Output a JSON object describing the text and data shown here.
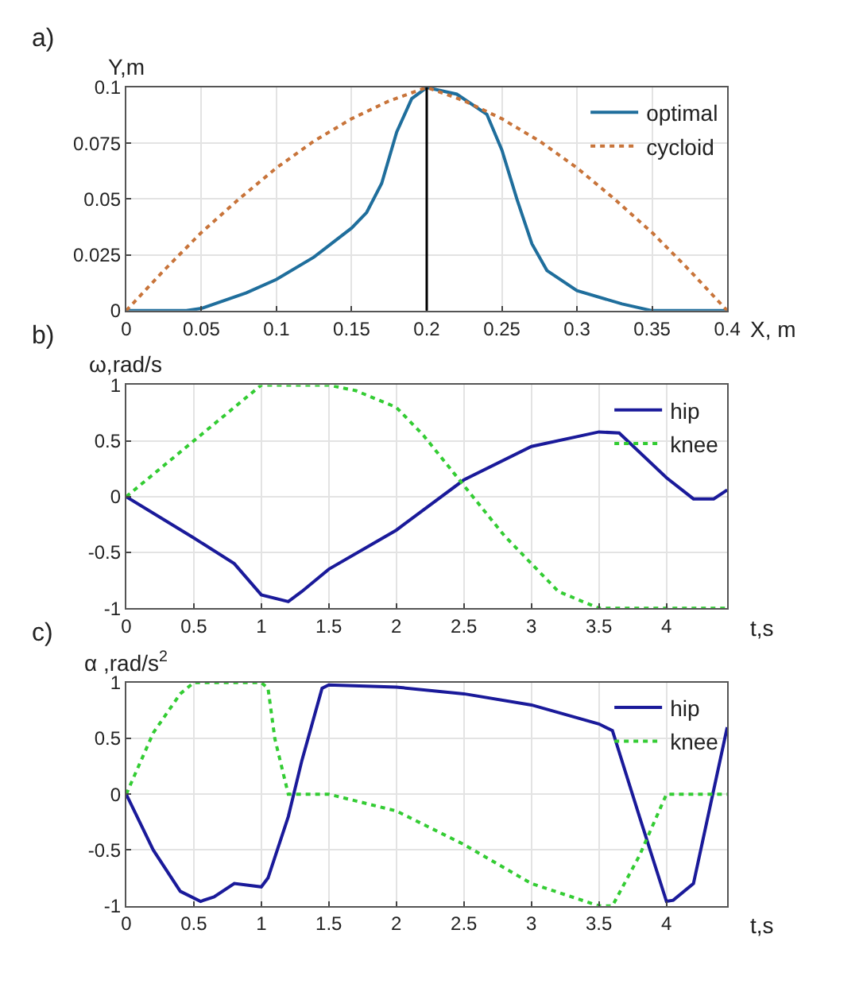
{
  "chart_data": [
    {
      "type": "line",
      "title": "a)",
      "xlabel": "X, m",
      "ylabel": "Y,m",
      "xlim": [
        0,
        0.4
      ],
      "ylim": [
        0,
        0.1
      ],
      "xticks": [
        0,
        0.05,
        0.1,
        0.15,
        0.2,
        0.25,
        0.3,
        0.35,
        0.4
      ],
      "yticks": [
        0,
        0.025,
        0.05,
        0.075,
        0.1
      ],
      "grid": true,
      "legend": "top right",
      "ref_lines": [
        {
          "axis": "x",
          "value": 0.2,
          "color": "#000000",
          "line_style": "solid"
        }
      ],
      "series": [
        {
          "name": "optimal",
          "color": "#1f6e9c",
          "line_style": "solid",
          "x": [
            0,
            0.04,
            0.05,
            0.08,
            0.1,
            0.125,
            0.15,
            0.16,
            0.17,
            0.18,
            0.19,
            0.2,
            0.22,
            0.24,
            0.25,
            0.26,
            0.27,
            0.28,
            0.3,
            0.33,
            0.35,
            0.4
          ],
          "values": [
            0,
            0,
            0.001,
            0.008,
            0.014,
            0.024,
            0.037,
            0.044,
            0.057,
            0.08,
            0.095,
            0.1,
            0.097,
            0.088,
            0.072,
            0.05,
            0.03,
            0.018,
            0.009,
            0.003,
            0,
            0
          ]
        },
        {
          "name": "cycloid",
          "color": "#c8743a",
          "line_style": "dotted",
          "x": [
            0,
            0.025,
            0.05,
            0.075,
            0.1,
            0.125,
            0.15,
            0.175,
            0.2,
            0.225,
            0.25,
            0.275,
            0.3,
            0.325,
            0.35,
            0.375,
            0.4
          ],
          "values": [
            0,
            0.018,
            0.035,
            0.05,
            0.064,
            0.076,
            0.086,
            0.094,
            0.1,
            0.094,
            0.086,
            0.076,
            0.064,
            0.05,
            0.035,
            0.018,
            0
          ]
        }
      ]
    },
    {
      "type": "line",
      "title": "b)",
      "xlabel": "t,s",
      "ylabel": "ω,rad/s",
      "xlim": [
        0,
        4.45
      ],
      "ylim": [
        -1,
        1
      ],
      "xticks": [
        0,
        0.5,
        1,
        1.5,
        2,
        2.5,
        3,
        3.5,
        4
      ],
      "yticks": [
        -1,
        -0.5,
        0,
        0.5,
        1
      ],
      "grid": true,
      "legend": "top right",
      "series": [
        {
          "name": "hip",
          "color": "#1a1a9a",
          "line_style": "solid",
          "x": [
            0,
            0.5,
            0.8,
            1,
            1.2,
            1.3,
            1.5,
            2,
            2.5,
            3,
            3.5,
            3.65,
            4,
            4.2,
            4.35,
            4.45
          ],
          "values": [
            0,
            -0.37,
            -0.6,
            -0.88,
            -0.94,
            -0.85,
            -0.65,
            -0.3,
            0.15,
            0.45,
            0.58,
            0.57,
            0.17,
            -0.02,
            -0.02,
            0.06
          ]
        },
        {
          "name": "knee",
          "color": "#33cc33",
          "line_style": "dotted",
          "x": [
            0,
            0.5,
            0.8,
            1,
            1.5,
            1.7,
            2,
            2.2,
            2.5,
            2.8,
            3,
            3.2,
            3.5,
            4.45
          ],
          "values": [
            0,
            0.5,
            0.8,
            1,
            1,
            0.95,
            0.8,
            0.55,
            0.1,
            -0.35,
            -0.6,
            -0.85,
            -1,
            -1
          ]
        }
      ]
    },
    {
      "type": "line",
      "title": "c)",
      "xlabel": "t,s",
      "ylabel": "α ,rad/s$^{2}$",
      "xlim": [
        0,
        4.45
      ],
      "ylim": [
        -1,
        1
      ],
      "xticks": [
        0,
        0.5,
        1,
        1.5,
        2,
        2.5,
        3,
        3.5,
        4
      ],
      "yticks": [
        -1,
        -0.5,
        0,
        0.5,
        1
      ],
      "grid": true,
      "legend": "top right",
      "series": [
        {
          "name": "hip",
          "color": "#1a1a9a",
          "line_style": "solid",
          "x": [
            0,
            0.2,
            0.4,
            0.55,
            0.65,
            0.8,
            1,
            1.05,
            1.2,
            1.3,
            1.45,
            1.5,
            2,
            2.5,
            3,
            3.5,
            3.6,
            3.8,
            4,
            4.05,
            4.2,
            4.45
          ],
          "values": [
            0,
            -0.5,
            -0.87,
            -0.96,
            -0.92,
            -0.8,
            -0.83,
            -0.75,
            -0.2,
            0.3,
            0.95,
            0.98,
            0.96,
            0.9,
            0.8,
            0.63,
            0.57,
            -0.2,
            -0.96,
            -0.95,
            -0.8,
            0.6
          ]
        },
        {
          "name": "knee",
          "color": "#33cc33",
          "line_style": "dotted",
          "x": [
            0,
            0.2,
            0.4,
            0.5,
            1,
            1.05,
            1.1,
            1.2,
            1.5,
            2,
            2.5,
            3,
            3.5,
            3.6,
            3.8,
            4,
            4.45
          ],
          "values": [
            0,
            0.55,
            0.9,
            1,
            1,
            0.95,
            0.5,
            0,
            0,
            -0.15,
            -0.45,
            -0.8,
            -1,
            -1,
            -0.55,
            0,
            0
          ]
        }
      ]
    }
  ]
}
